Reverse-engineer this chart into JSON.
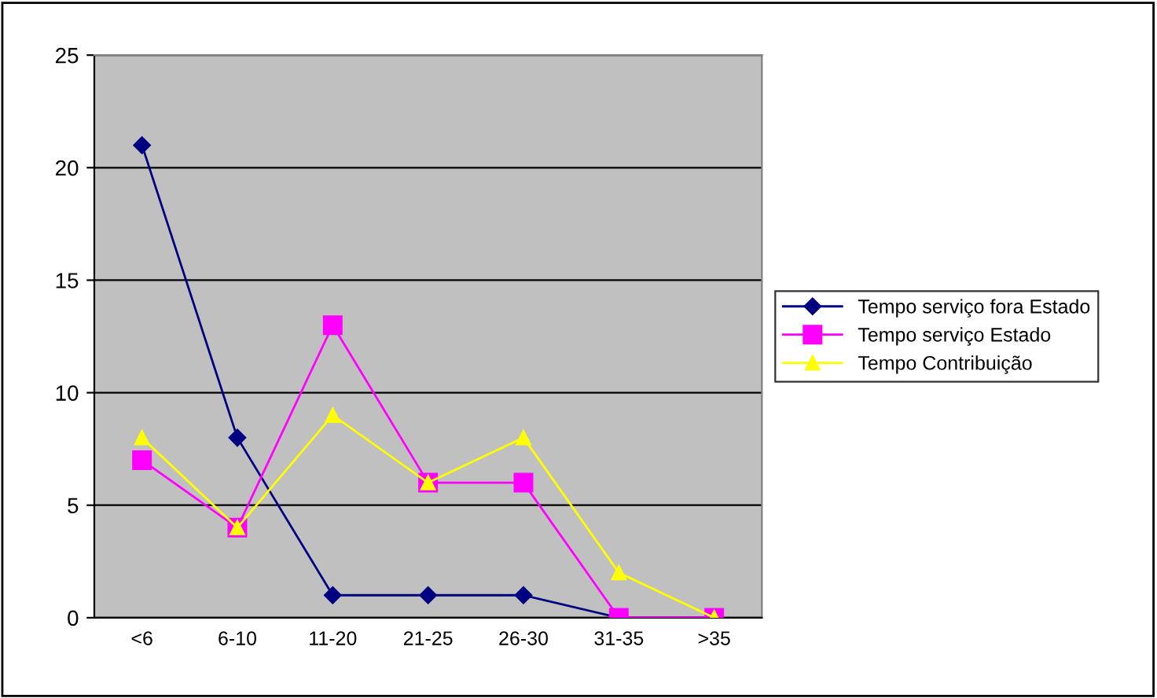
{
  "chart_data": {
    "type": "line",
    "categories": [
      "<6",
      "6-10",
      "11-20",
      "21-25",
      "26-30",
      "31-35",
      ">35"
    ],
    "series": [
      {
        "name": "Tempo serviço fora Estado",
        "color": "#000080",
        "marker": "diamond",
        "values": [
          21,
          8,
          1,
          1,
          1,
          0,
          0
        ]
      },
      {
        "name": "Tempo serviço Estado",
        "color": "#ff00ff",
        "marker": "square",
        "values": [
          7,
          4,
          13,
          6,
          6,
          0,
          0
        ]
      },
      {
        "name": "Tempo Contribuição",
        "color": "#ffff00",
        "marker": "triangle",
        "values": [
          8,
          4,
          9,
          6,
          8,
          2,
          0
        ]
      }
    ],
    "ylim": [
      0,
      25
    ],
    "yticks": [
      0,
      5,
      10,
      15,
      20,
      25
    ],
    "grid": "y",
    "legend": "right"
  }
}
